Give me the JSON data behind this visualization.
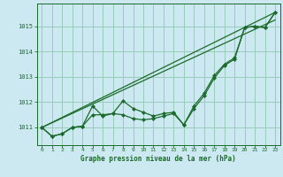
{
  "xlabel": "Graphe pression niveau de la mer (hPa)",
  "bg_color": "#cce8f0",
  "grid_color": "#99ccbb",
  "line_color": "#1a6b2a",
  "xlim": [
    -0.5,
    23.5
  ],
  "ylim": [
    1010.3,
    1015.9
  ],
  "xticks": [
    0,
    1,
    2,
    3,
    4,
    5,
    6,
    7,
    8,
    9,
    10,
    11,
    12,
    13,
    14,
    15,
    16,
    17,
    18,
    19,
    20,
    21,
    22,
    23
  ],
  "yticks": [
    1011,
    1012,
    1013,
    1014,
    1015
  ],
  "line1_x": [
    0,
    1,
    2,
    3,
    4,
    5,
    6,
    7,
    8,
    9,
    10,
    11,
    12,
    13,
    14,
    15,
    16,
    17,
    18,
    19,
    20,
    21,
    22,
    23
  ],
  "line1_y": [
    1011.0,
    1010.65,
    1010.75,
    1011.0,
    1011.05,
    1011.85,
    1011.45,
    1011.55,
    1012.05,
    1011.75,
    1011.6,
    1011.45,
    1011.55,
    1011.6,
    1011.1,
    1011.85,
    1012.35,
    1013.05,
    1013.5,
    1013.75,
    1014.95,
    1015.0,
    1014.95,
    1015.55
  ],
  "line2_x": [
    0,
    1,
    2,
    3,
    4,
    5,
    6,
    7,
    8,
    9,
    10,
    11,
    12,
    13,
    14,
    15,
    16,
    17,
    18,
    19,
    20,
    21,
    22,
    23
  ],
  "line2_y": [
    1011.0,
    1010.65,
    1010.75,
    1011.0,
    1011.05,
    1011.5,
    1011.5,
    1011.55,
    1011.5,
    1011.35,
    1011.3,
    1011.35,
    1011.45,
    1011.55,
    1011.1,
    1011.75,
    1012.25,
    1012.95,
    1013.45,
    1013.7,
    1014.95,
    1015.0,
    1014.95,
    1015.55
  ],
  "trend1_x": [
    0,
    23
  ],
  "trend1_y": [
    1011.0,
    1015.55
  ],
  "trend2_x": [
    0,
    23
  ],
  "trend2_y": [
    1011.0,
    1015.25
  ]
}
